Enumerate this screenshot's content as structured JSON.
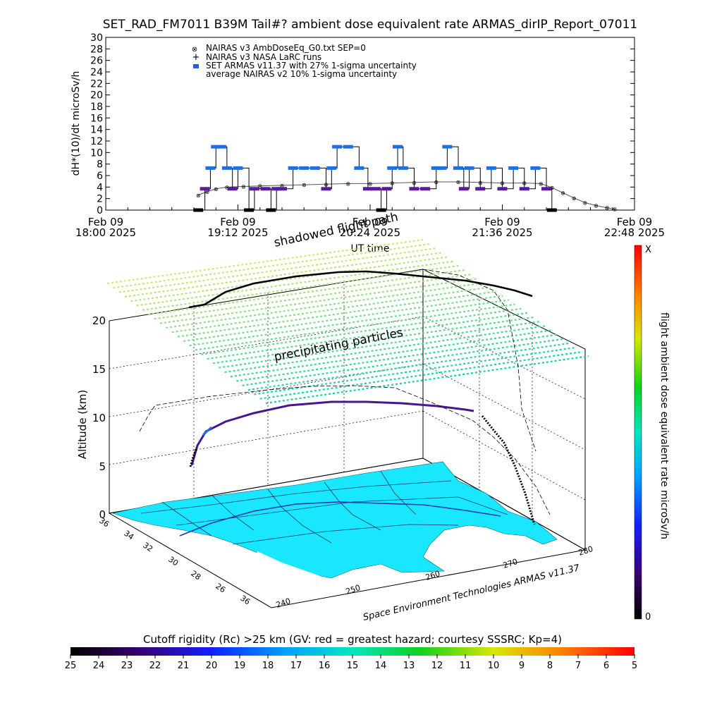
{
  "title": "SET_RAD_FM7011  B39M Tail#? ambient dose equivalent rate ARMAS_dirIP_Report_07011",
  "time_panel": {
    "ylabel": "dH*(10)/dt microSv/h",
    "xlabel": "UT time",
    "legend": [
      {
        "marker": "circle-x",
        "label": "NAIRAS v3 AmbDoseEq_G0.txt SEP=0"
      },
      {
        "marker": "plus",
        "label": "NAIRAS v3 NASA LaRC runs"
      },
      {
        "marker": "blue-square",
        "label": "SET ARMAS v11.37 with 27% 1-sigma uncertainty"
      },
      {
        "marker": "none",
        "label": "average NAIRAS v2 10% 1-sigma uncertainty"
      }
    ],
    "xticks": [
      {
        "date": "Feb 09",
        "time": "18:00 2025"
      },
      {
        "date": "Feb 09",
        "time": "19:12 2025"
      },
      {
        "date": "Feb 09",
        "time": "20:24 2025"
      },
      {
        "date": "Feb 09",
        "time": "21:36 2025"
      },
      {
        "date": "Feb 09",
        "time": "22:48 2025"
      }
    ]
  },
  "perspective": {
    "z_label": "Altitude (km)",
    "z_ticks": [
      "0",
      "5",
      "10",
      "15",
      "20"
    ],
    "lat_ticks": [
      "36",
      "34",
      "32",
      "30",
      "28",
      "26"
    ],
    "lon_ticks": [
      "240",
      "250",
      "260",
      "270",
      "280"
    ],
    "annotations": {
      "shadowed_flight_path": "shadowed flight path",
      "precipitating_particles": "precipitating particles"
    },
    "credit": "Space Environment Technologies ARMAS v11.37"
  },
  "vertical_colorbar": {
    "label": "flight ambient dose equivalent rate microSv/h",
    "top": "X",
    "bottom": "0"
  },
  "horizontal_colorbar": {
    "label": "Cutoff rigidity (Rc) >25 km (GV: red = greatest hazard; courtesy SSSRC; Kp=4)",
    "ticks": [
      "25",
      "24",
      "23",
      "22",
      "21",
      "20",
      "19",
      "18",
      "17",
      "16",
      "15",
      "14",
      "13",
      "12",
      "11",
      "10",
      "9",
      "8",
      "7",
      "6",
      "5"
    ]
  },
  "colors": {
    "armas_blue": "#1f6fe0",
    "armas_purple": "#5a1a9a",
    "map_cyan": "#19e6ff",
    "nairas_gray": "#555555"
  },
  "chart_data": [
    {
      "type": "scatter",
      "title": "SET_RAD_FM7011  B39M Tail#? ambient dose equivalent rate ARMAS_dirIP_Report_07011",
      "xlabel": "UT time",
      "ylabel": "dH*(10)/dt microSv/h",
      "ylim": [
        0,
        30
      ],
      "xlim": [
        "18:00",
        "22:48"
      ],
      "x_unit": "UT hours",
      "series": [
        {
          "name": "NAIRAS v3 AmbDoseEq_G0.txt SEP=0",
          "x": [
            18.84,
            18.92,
            19.0,
            19.1,
            19.25,
            19.4,
            19.6,
            19.8,
            20.0,
            20.2,
            20.4,
            20.6,
            20.8,
            21.0,
            21.2,
            21.4,
            21.6,
            21.8,
            21.95,
            22.05,
            22.15,
            22.25,
            22.35,
            22.45,
            22.55,
            22.62
          ],
          "values": [
            2.6,
            3.2,
            3.7,
            4.0,
            4.1,
            4.2,
            4.3,
            4.4,
            4.5,
            4.6,
            4.6,
            4.7,
            4.8,
            4.9,
            4.9,
            4.8,
            4.7,
            4.7,
            4.6,
            3.9,
            3.0,
            2.1,
            1.3,
            0.8,
            0.4,
            0.2
          ]
        },
        {
          "name": "SET ARMAS v11.37 with 27% 1-sigma uncertainty",
          "x": [
            18.84,
            18.9,
            18.95,
            19.0,
            19.05,
            19.1,
            19.15,
            19.2,
            19.3,
            19.35,
            19.45,
            19.5,
            19.55,
            19.6,
            19.7,
            19.8,
            19.9,
            20.0,
            20.05,
            20.1,
            20.2,
            20.3,
            20.38,
            20.45,
            20.5,
            20.55,
            20.6,
            20.65,
            20.7,
            20.8,
            20.9,
            21.0,
            21.05,
            21.1,
            21.2,
            21.25,
            21.3,
            21.4,
            21.5,
            21.6,
            21.7,
            21.8,
            21.9,
            22.0,
            22.05
          ],
          "values": [
            0,
            3.7,
            7.3,
            11,
            11,
            7.3,
            3.7,
            7.3,
            0,
            3.7,
            3.7,
            0,
            3.7,
            3.7,
            7.3,
            7.3,
            7.3,
            3.7,
            7.3,
            11,
            11,
            7.3,
            3.7,
            3.7,
            0,
            3.7,
            7.3,
            11,
            7.3,
            3.7,
            3.7,
            7.3,
            7.3,
            11,
            7.3,
            3.7,
            7.3,
            3.7,
            7.3,
            3.7,
            7.3,
            3.7,
            7.3,
            3.7,
            0
          ]
        }
      ]
    }
  ]
}
